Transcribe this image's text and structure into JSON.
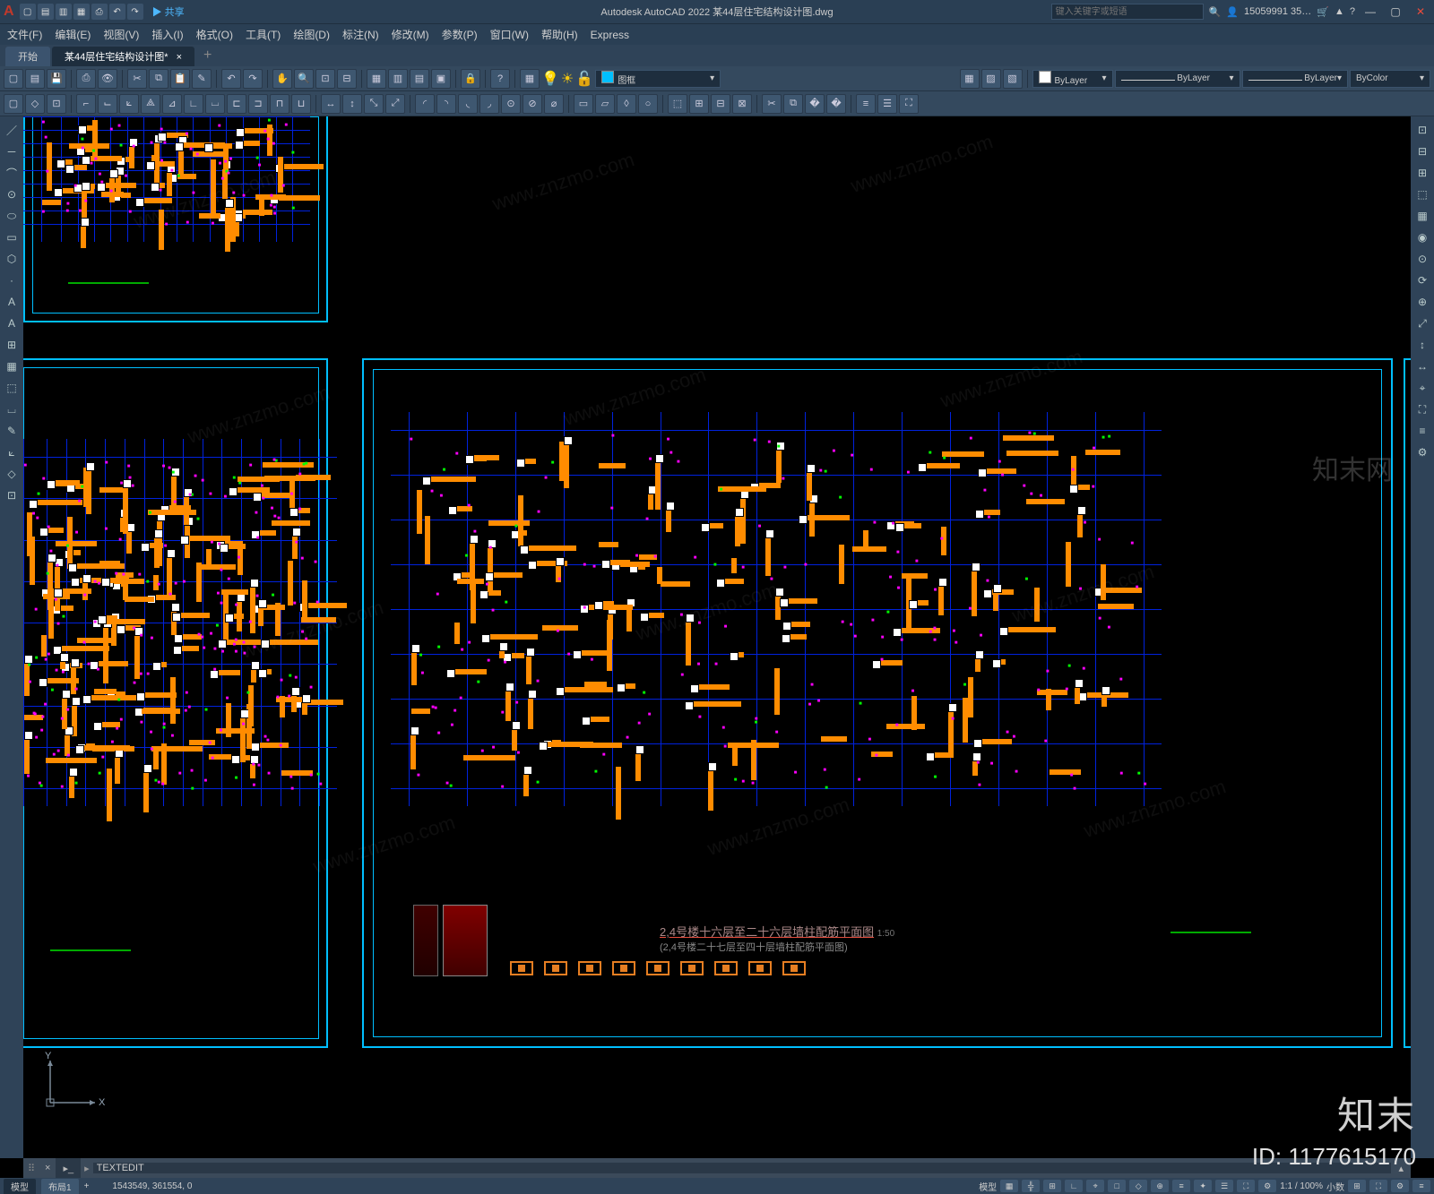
{
  "app": {
    "title": "Autodesk AutoCAD 2022   某44层住宅结构设计图.dwg",
    "logo": "A",
    "share": "▶ 共享",
    "search_placeholder": "键入关键字或短语",
    "user": "15059991 35…",
    "help": "?"
  },
  "menu": [
    "文件(F)",
    "编辑(E)",
    "视图(V)",
    "插入(I)",
    "格式(O)",
    "工具(T)",
    "绘图(D)",
    "标注(N)",
    "修改(M)",
    "参数(P)",
    "窗口(W)",
    "帮助(H)",
    "Express"
  ],
  "filetabs": {
    "start": "开始",
    "active": "某44层住宅结构设计图*",
    "plus": "+"
  },
  "layer_combo": "图框",
  "props": {
    "bylayer1": "ByLayer",
    "bylayer2": "ByLayer",
    "bylayer3": "ByLayer",
    "bycolor": "ByColor"
  },
  "drawing": {
    "main_title": "2,4号楼十六层至二十六层墙柱配筋平面图",
    "main_scale": "1:50",
    "main_sub": "(2,4号楼二十七层至四十层墙柱配筋平面图)",
    "colors": {
      "frame": "#00bfff",
      "grid": "#0022dd",
      "wall": "#ff8c00",
      "column": "#c0392b",
      "rebar_tag": "#ff00ff",
      "dim": "#00ff00",
      "text": "#ffffff"
    },
    "grid": {
      "vx": [
        0,
        60,
        110,
        160,
        210,
        260,
        310,
        360,
        410,
        460,
        510,
        560,
        610,
        660,
        710,
        760
      ],
      "hy": [
        0,
        40,
        80,
        120,
        160,
        200,
        240,
        280,
        320
      ]
    }
  },
  "cmd": {
    "prompt": "TEXTEDIT"
  },
  "status": {
    "tabs": [
      "模型",
      "布局1"
    ],
    "plus": "+",
    "coords": "1543549, 361554, 0",
    "mode_model": "模型",
    "scale": "1:1 / 100%",
    "decimal": "小数",
    "annos": [
      "▦",
      "╬",
      "⊞",
      "∟",
      "⌖",
      "□",
      "◇",
      "⊕",
      "≡",
      "✦",
      "☰",
      "⛶",
      "⚙"
    ]
  },
  "watermark": {
    "brand": "知末",
    "id_label": "ID: 1177615170",
    "url": "www.znzmo.com",
    "cn": "知末网"
  }
}
